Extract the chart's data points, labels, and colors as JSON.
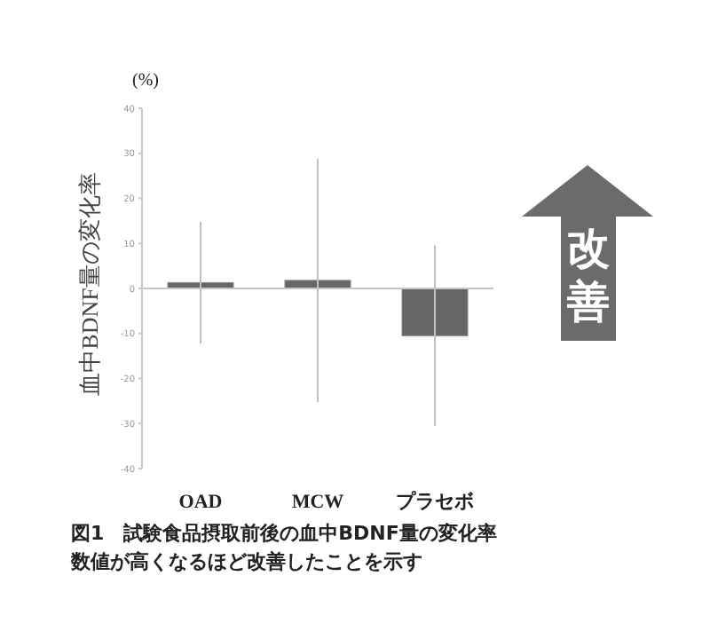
{
  "chart_data": {
    "type": "bar",
    "title": "図1　試験食品摂取前後の血中BDNF量の変化率",
    "subtitle": "数値が高くなるほど改善したことを示す",
    "ylabel": "血中BDNF量の変化率",
    "categories": [
      "OAD",
      "MCW",
      "プラセボ"
    ],
    "values": [
      1.3,
      1.8,
      -10.5
    ],
    "errors": [
      13.5,
      27,
      20
    ],
    "color": "#666666",
    "ylim": [
      -40,
      40
    ],
    "yticks": [
      -40,
      -30,
      -20,
      -10,
      0,
      10,
      20,
      30,
      40
    ],
    "annotations": [
      "(%)",
      "改善"
    ]
  }
}
